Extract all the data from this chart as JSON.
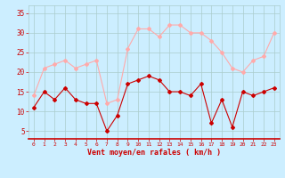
{
  "hours": [
    0,
    1,
    2,
    3,
    4,
    5,
    6,
    7,
    8,
    9,
    10,
    11,
    12,
    13,
    14,
    15,
    16,
    17,
    18,
    19,
    20,
    21,
    22,
    23
  ],
  "wind_mean": [
    11,
    15,
    13,
    16,
    13,
    12,
    12,
    5,
    9,
    17,
    18,
    19,
    18,
    15,
    15,
    14,
    17,
    7,
    13,
    6,
    15,
    14,
    15,
    16
  ],
  "wind_gusts": [
    14,
    21,
    22,
    23,
    21,
    22,
    23,
    12,
    13,
    26,
    31,
    31,
    29,
    32,
    32,
    30,
    30,
    28,
    25,
    21,
    20,
    23,
    24,
    30
  ],
  "mean_color": "#cc0000",
  "gusts_color": "#ffaaaa",
  "bg_color": "#cceeff",
  "grid_color": "#aacccc",
  "axis_color": "#cc0000",
  "xlabel": "Vent moyen/en rafales ( km/h )",
  "ylim": [
    3,
    37
  ],
  "yticks": [
    5,
    10,
    15,
    20,
    25,
    30,
    35
  ],
  "xlim": [
    -0.5,
    23.5
  ]
}
